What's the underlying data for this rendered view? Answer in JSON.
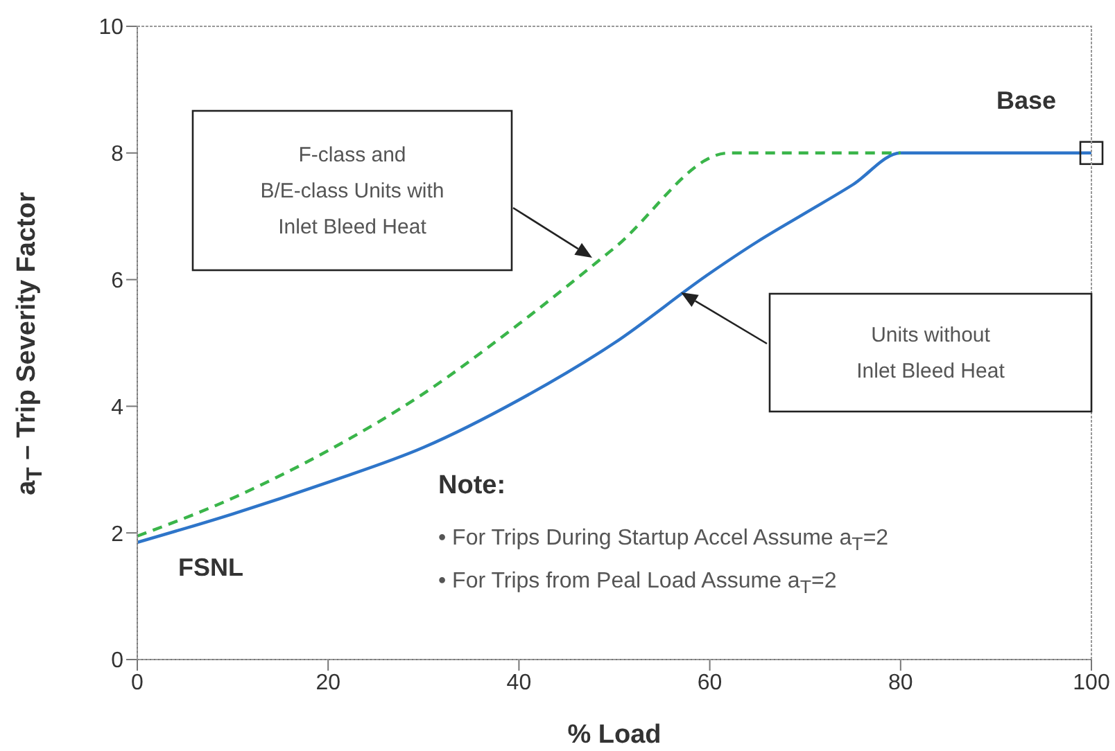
{
  "chart_data": {
    "type": "line",
    "xlabel": "% Load",
    "ylabel": "a$_{T}$ – Trip Severity Factor",
    "xlim": [
      0,
      100
    ],
    "xticks": [
      0,
      20,
      40,
      60,
      80,
      100
    ],
    "ylim": [
      0,
      10
    ],
    "yticks": [
      0,
      2,
      4,
      6,
      8,
      10
    ],
    "marker": "none",
    "series": [
      {
        "color": "#2e75c9",
        "line_style": "solid",
        "x": [
          0,
          10,
          20,
          30,
          40,
          50,
          60,
          65,
          70,
          75,
          80,
          100
        ],
        "values": [
          1.85,
          2.3,
          2.8,
          3.35,
          4.1,
          5.0,
          6.1,
          6.6,
          7.05,
          7.5,
          8,
          8
        ]
      },
      {
        "color": "#3ab54a",
        "line_style": "dashed",
        "x": [
          0,
          10,
          20,
          30,
          40,
          50,
          62,
          80
        ],
        "values": [
          1.95,
          2.55,
          3.3,
          4.2,
          5.3,
          6.5,
          8,
          8
        ]
      }
    ],
    "annotations": [
      {
        "text": "Base",
        "x": 100,
        "y": 8
      },
      {
        "text": "FSNL",
        "x": 0,
        "y": 1.85
      },
      "F-class and\nB/E-class Units with\nInlet Bleed Heat",
      "Units without\nInlet Bleed Heat",
      "Note:",
      "• For Trips During Startup Accel Assume a$_{T}$=2",
      "• For Trips from Peal Load Assume a$_{T}$=2"
    ]
  }
}
